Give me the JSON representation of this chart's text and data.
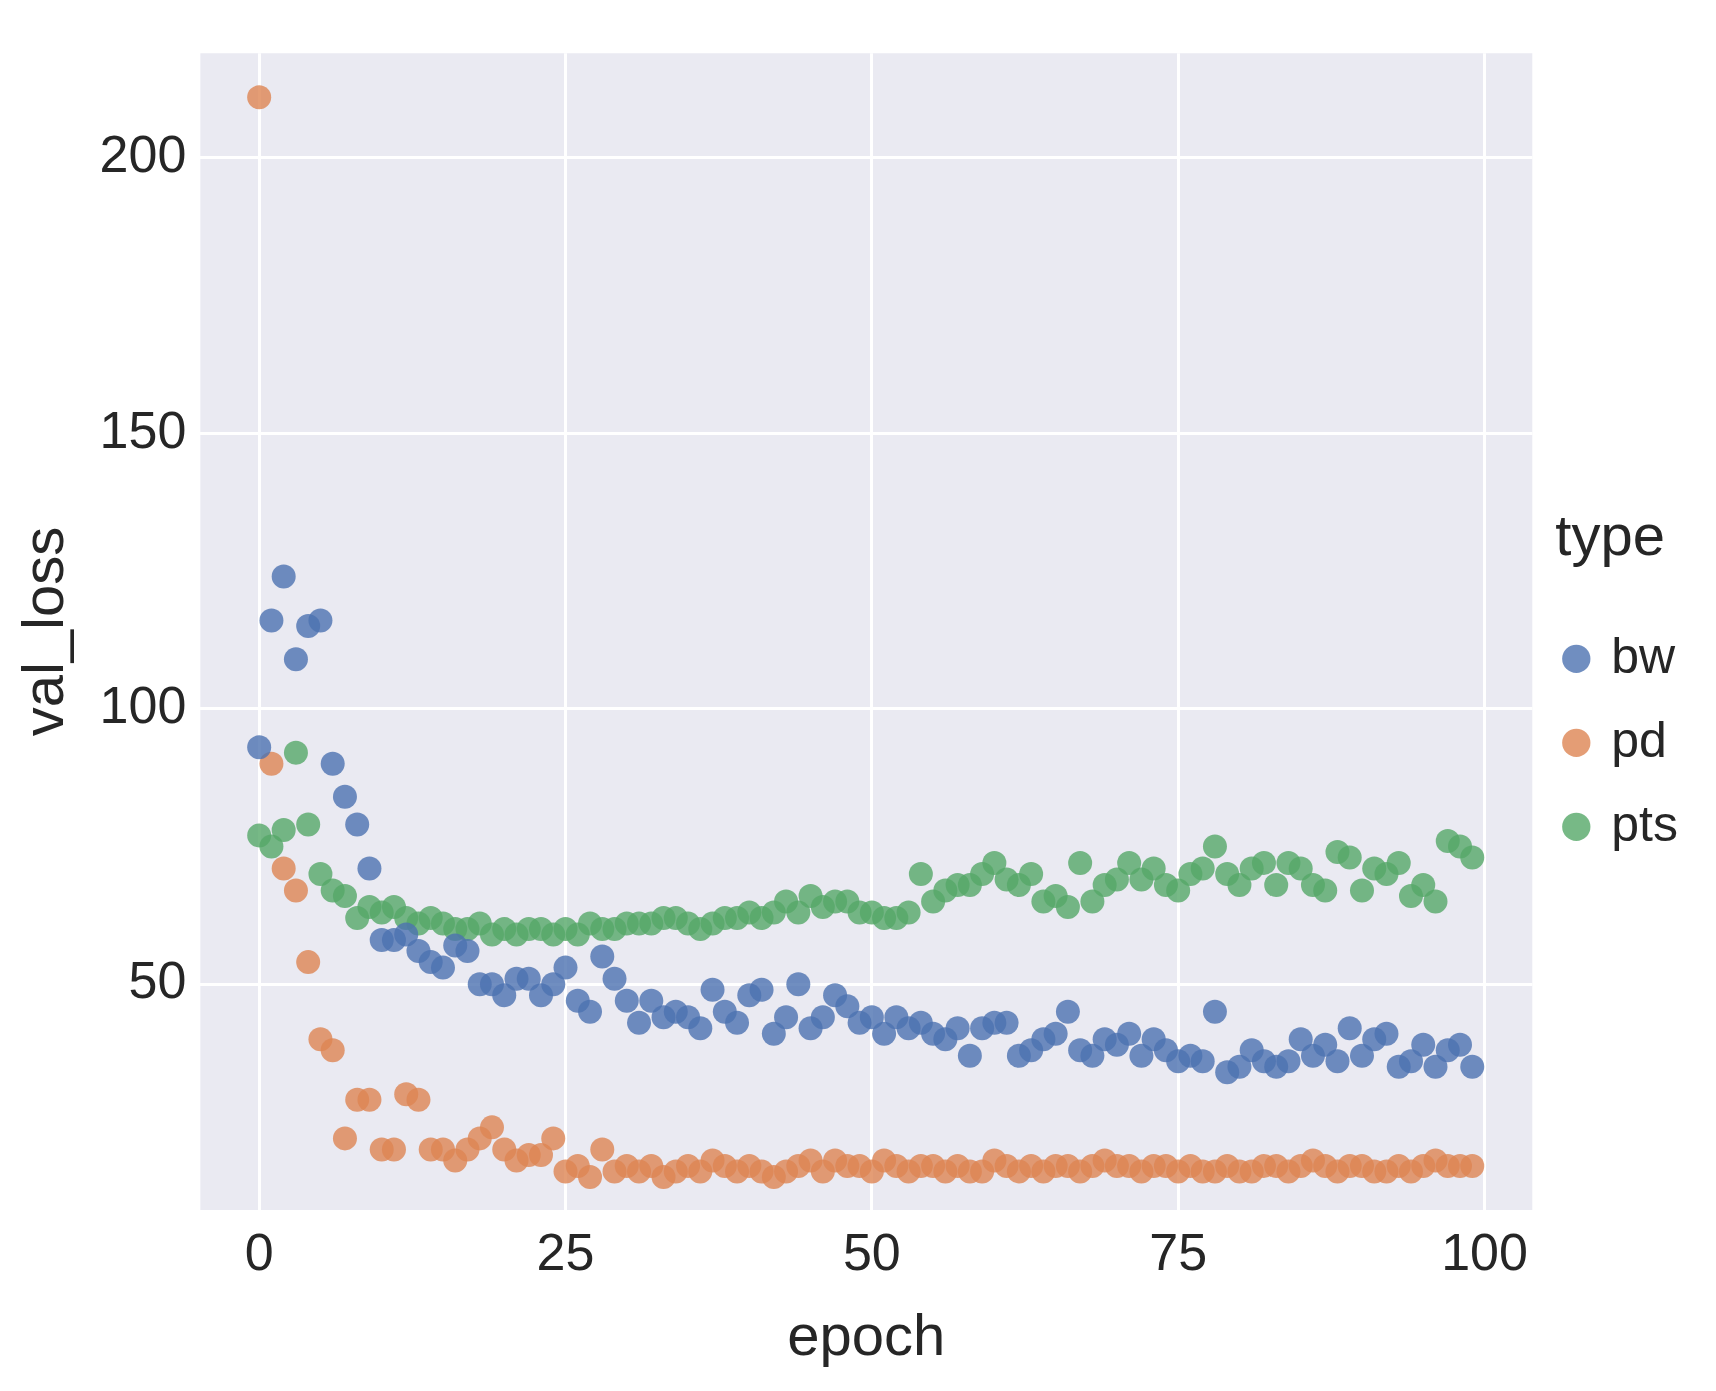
{
  "chart_data": {
    "type": "scatter",
    "xlabel": "epoch",
    "ylabel": "val_loss",
    "legend_title": "type",
    "legend": "right",
    "grid": true,
    "marker": "circle",
    "xlim": [
      -4.8,
      103.9
    ],
    "ylim": [
      9,
      219
    ],
    "xticks": [
      0,
      25,
      50,
      75,
      100
    ],
    "yticks": [
      50,
      100,
      150,
      200
    ],
    "x": [
      0,
      1,
      2,
      3,
      4,
      5,
      6,
      7,
      8,
      9,
      10,
      11,
      12,
      13,
      14,
      15,
      16,
      17,
      18,
      19,
      20,
      21,
      22,
      23,
      24,
      25,
      26,
      27,
      28,
      29,
      30,
      31,
      32,
      33,
      34,
      35,
      36,
      37,
      38,
      39,
      40,
      41,
      42,
      43,
      44,
      45,
      46,
      47,
      48,
      49,
      50,
      51,
      52,
      53,
      54,
      55,
      56,
      57,
      58,
      59,
      60,
      61,
      62,
      63,
      64,
      65,
      66,
      67,
      68,
      69,
      70,
      71,
      72,
      73,
      74,
      75,
      76,
      77,
      78,
      79,
      80,
      81,
      82,
      83,
      84,
      85,
      86,
      87,
      88,
      89,
      90,
      91,
      92,
      93,
      94,
      95,
      96,
      97,
      98,
      99
    ],
    "series": [
      {
        "name": "bw",
        "color": "#4c72b0",
        "values": [
          93,
          116,
          124,
          109,
          115,
          116,
          90,
          84,
          79,
          71,
          58,
          58,
          59,
          56,
          54,
          53,
          57,
          56,
          50,
          50,
          48,
          51,
          51,
          48,
          50,
          53,
          47,
          45,
          55,
          51,
          47,
          43,
          47,
          44,
          45,
          44,
          42,
          49,
          45,
          43,
          48,
          49,
          41,
          44,
          50,
          42,
          44,
          48,
          46,
          43,
          44,
          41,
          44,
          42,
          43,
          41,
          40,
          42,
          37,
          42,
          43,
          43,
          37,
          38,
          40,
          41,
          45,
          38,
          37,
          40,
          39,
          41,
          37,
          40,
          38,
          36,
          37,
          36,
          45,
          34,
          35,
          38,
          36,
          35,
          36,
          40,
          37,
          39,
          36,
          42,
          37,
          40,
          41,
          35,
          36,
          39,
          35,
          38,
          39,
          35
        ]
      },
      {
        "name": "pd",
        "color": "#dd8452",
        "values": [
          211,
          90,
          71,
          67,
          54,
          40,
          38,
          22,
          29,
          29,
          20,
          20,
          30,
          29,
          20,
          20,
          18,
          20,
          22,
          24,
          20,
          18,
          19,
          19,
          22,
          16,
          17,
          15,
          20,
          16,
          17,
          16,
          17,
          15,
          16,
          17,
          16,
          18,
          17,
          16,
          17,
          16,
          15,
          16,
          17,
          18,
          16,
          18,
          17,
          17,
          16,
          18,
          17,
          16,
          17,
          17,
          16,
          17,
          16,
          16,
          18,
          17,
          16,
          17,
          16,
          17,
          17,
          16,
          17,
          18,
          17,
          17,
          16,
          17,
          17,
          16,
          17,
          16,
          16,
          17,
          16,
          16,
          17,
          17,
          16,
          17,
          18,
          17,
          16,
          17,
          17,
          16,
          16,
          17,
          16,
          17,
          18,
          17,
          17,
          17
        ]
      },
      {
        "name": "pts",
        "color": "#55a868",
        "values": [
          77,
          75,
          78,
          92,
          79,
          70,
          67,
          66,
          62,
          64,
          63,
          64,
          62,
          61,
          62,
          61,
          60,
          60,
          61,
          59,
          60,
          59,
          60,
          60,
          59,
          60,
          59,
          61,
          60,
          60,
          61,
          61,
          61,
          62,
          62,
          61,
          60,
          61,
          62,
          62,
          63,
          62,
          63,
          65,
          63,
          66,
          64,
          65,
          65,
          63,
          63,
          62,
          62,
          63,
          70,
          65,
          67,
          68,
          68,
          70,
          72,
          69,
          68,
          70,
          65,
          66,
          64,
          72,
          65,
          68,
          69,
          72,
          69,
          71,
          68,
          67,
          70,
          71,
          75,
          70,
          68,
          71,
          72,
          68,
          72,
          71,
          68,
          67,
          74,
          73,
          67,
          71,
          70,
          72,
          66,
          68,
          65,
          76,
          75,
          73
        ]
      }
    ]
  }
}
